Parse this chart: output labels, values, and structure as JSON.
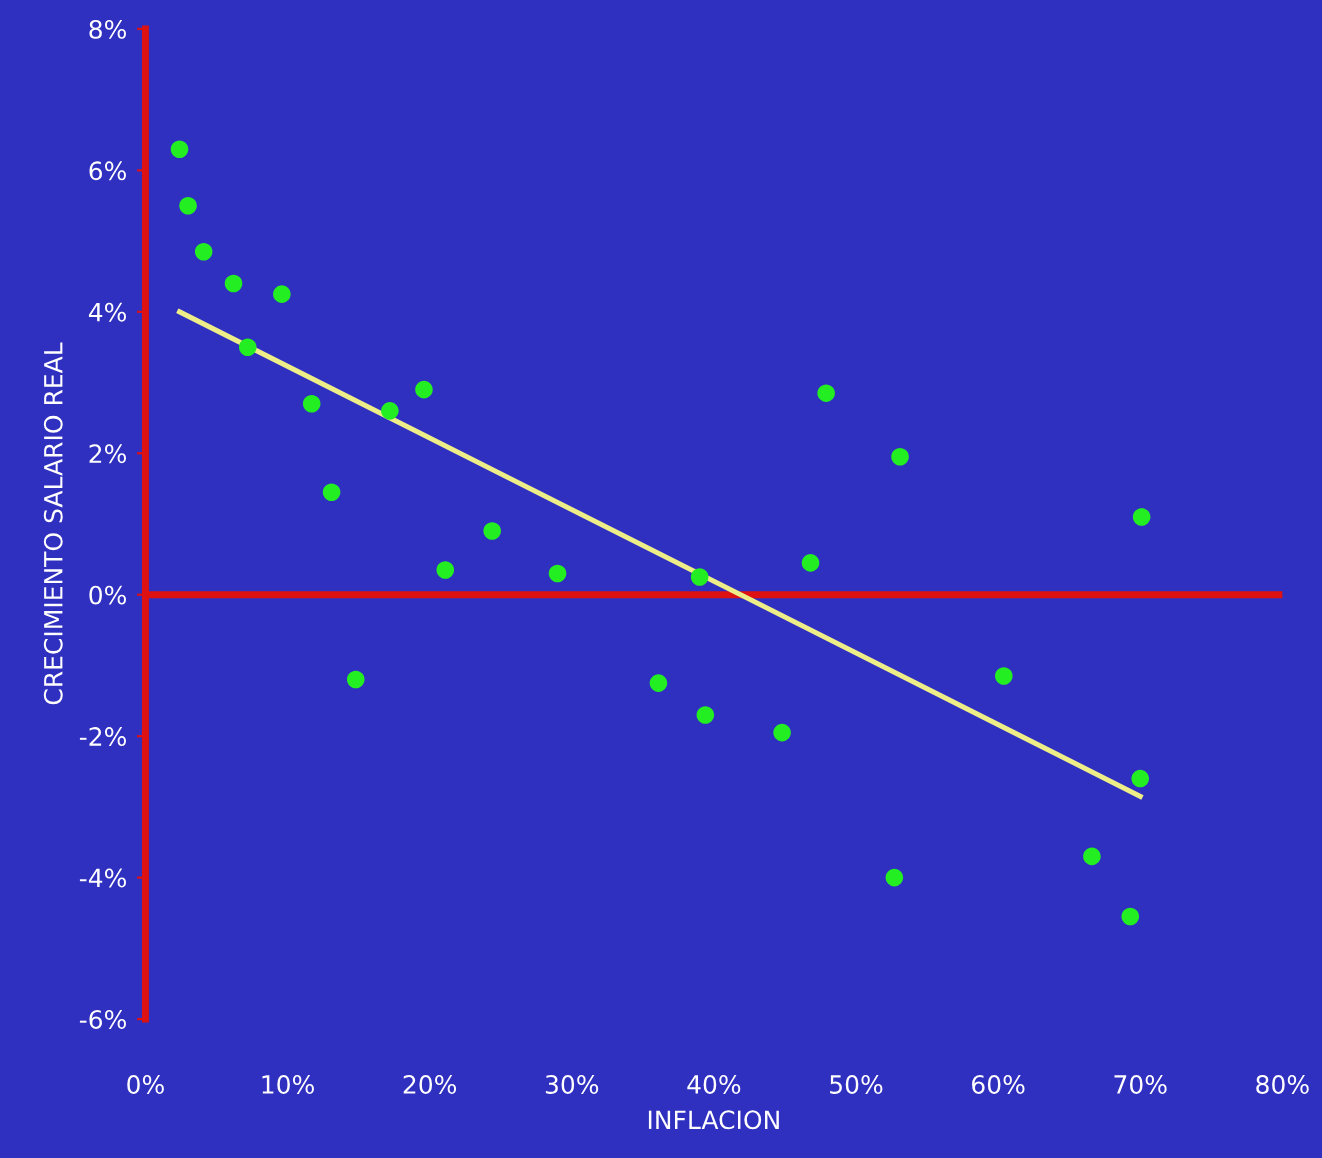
{
  "chart_data": {
    "type": "scatter",
    "xlabel": "INFLACION",
    "ylabel": "CRECIMIENTO SALARIO REAL",
    "xlim": [
      0,
      80
    ],
    "ylim": [
      -6,
      8
    ],
    "xticks": [
      {
        "value": 0,
        "label": "0%"
      },
      {
        "value": 10,
        "label": "10%"
      },
      {
        "value": 20,
        "label": "20%"
      },
      {
        "value": 30,
        "label": "30%"
      },
      {
        "value": 40,
        "label": "40%"
      },
      {
        "value": 50,
        "label": "50%"
      },
      {
        "value": 60,
        "label": "60%"
      },
      {
        "value": 70,
        "label": "70%"
      },
      {
        "value": 80,
        "label": "80%"
      }
    ],
    "yticks": [
      {
        "value": -6,
        "label": "-6%"
      },
      {
        "value": -4,
        "label": "-4%"
      },
      {
        "value": -2,
        "label": "-2%"
      },
      {
        "value": 0,
        "label": "0%"
      },
      {
        "value": 2,
        "label": "2%"
      },
      {
        "value": 4,
        "label": "4%"
      },
      {
        "value": 6,
        "label": "6%"
      },
      {
        "value": 8,
        "label": "8%"
      }
    ],
    "grid": false,
    "legend": false,
    "ref_lines": [
      {
        "axis": "y",
        "value": 0,
        "color": "#dd1111"
      }
    ],
    "series": [
      {
        "marker": "circle",
        "color": "#22ee22",
        "x": [
          2.4,
          3.0,
          4.1,
          6.2,
          9.6,
          7.2,
          11.7,
          13.1,
          17.2,
          19.6,
          14.8,
          21.1,
          24.4,
          29.0,
          39.0,
          36.1,
          39.4,
          44.8,
          46.8,
          47.9,
          53.1,
          60.4,
          70.1,
          70.0,
          52.7,
          66.6,
          69.3
        ],
        "values": [
          6.3,
          5.5,
          4.85,
          4.4,
          4.25,
          3.5,
          2.7,
          1.45,
          2.6,
          2.9,
          -1.2,
          0.35,
          0.9,
          0.3,
          0.25,
          -1.25,
          -1.7,
          -1.95,
          0.45,
          2.85,
          1.95,
          -1.15,
          1.1,
          -2.6,
          -4.0,
          -3.7,
          -4.55
        ]
      },
      {
        "type": "line",
        "marker": "none",
        "color": "#eeee88",
        "x": [
          2.4,
          70
        ],
        "values": [
          4.0,
          -2.85
        ]
      }
    ]
  }
}
